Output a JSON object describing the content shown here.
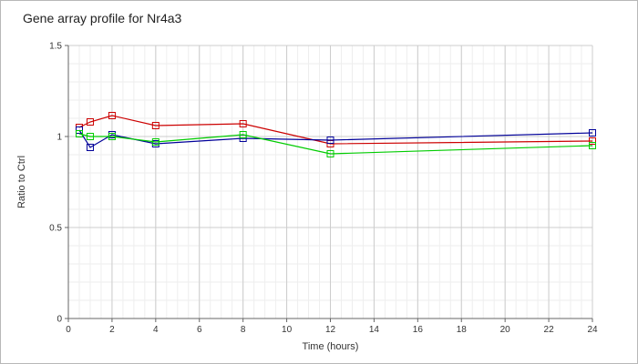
{
  "chart_data": {
    "type": "line",
    "title": "Gene array profile for Nr4a3",
    "xlabel": "Time (hours)",
    "ylabel": "Ratio to Ctrl",
    "xlim": [
      0,
      24
    ],
    "ylim": [
      0,
      1.5
    ],
    "x_ticks": [
      0,
      2,
      4,
      6,
      8,
      10,
      12,
      14,
      16,
      18,
      20,
      22,
      24
    ],
    "y_ticks": [
      0,
      0.5,
      1,
      1.5
    ],
    "grid": true,
    "legend": "none",
    "series": [
      {
        "color": "#cc0000",
        "x": [
          0.5,
          1,
          2,
          4,
          8,
          12,
          24
        ],
        "values": [
          1.05,
          1.08,
          1.115,
          1.06,
          1.07,
          0.96,
          0.975
        ]
      },
      {
        "color": "#000099",
        "x": [
          0.5,
          1,
          2,
          4,
          8,
          12,
          24
        ],
        "values": [
          1.035,
          0.94,
          1.01,
          0.96,
          0.99,
          0.98,
          1.02
        ]
      },
      {
        "color": "#00cc00",
        "x": [
          0.5,
          1,
          2,
          4,
          8,
          12,
          24
        ],
        "values": [
          1.015,
          1.0,
          1.0,
          0.97,
          1.01,
          0.905,
          0.95
        ]
      }
    ]
  }
}
